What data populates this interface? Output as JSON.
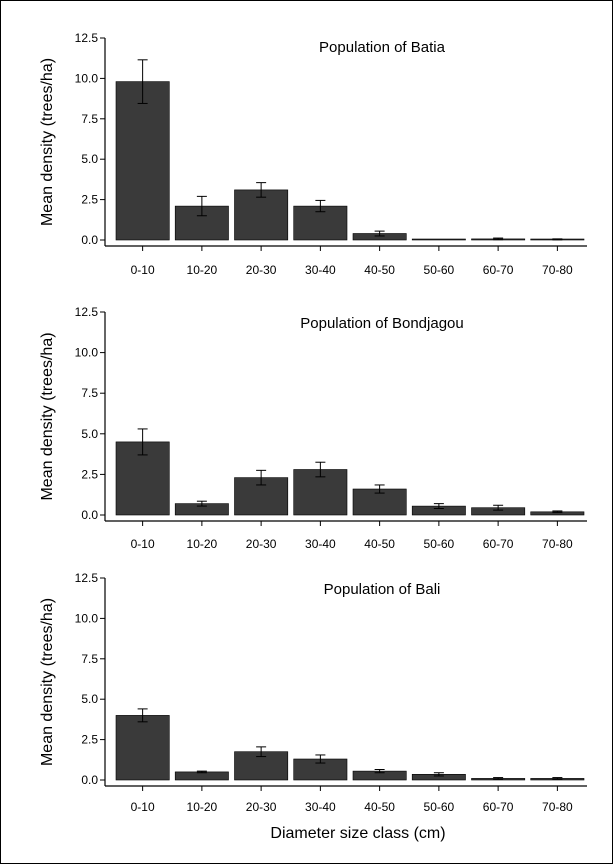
{
  "figure": {
    "xlabel": "Diameter size class (cm)",
    "ylabel": "Mean density (trees/ha)",
    "bar_color": "#3a3a3a",
    "axis_color": "#000000"
  },
  "chart_data": [
    {
      "type": "bar",
      "title": "Population of Batia",
      "xlabel": "",
      "ylabel": "Mean density (trees/ha)",
      "categories": [
        "0-10",
        "10-20",
        "20-30",
        "30-40",
        "40-50",
        "50-60",
        "60-70",
        "70-80"
      ],
      "values": [
        9.8,
        2.1,
        3.1,
        2.1,
        0.4,
        0.0,
        0.07,
        0.04
      ],
      "errors": [
        1.35,
        0.6,
        0.45,
        0.35,
        0.15,
        0.0,
        0.05,
        0.03
      ],
      "yticks": [
        0.0,
        2.5,
        5.0,
        7.5,
        10.0,
        12.5
      ],
      "ytick_labels": [
        "0.0",
        "2.5",
        "5.0",
        "7.5",
        "10.0",
        "12.5"
      ],
      "ylim": [
        0,
        12.5
      ],
      "grid": false
    },
    {
      "type": "bar",
      "title": "Population of Bondjagou",
      "xlabel": "",
      "ylabel": "Mean density (trees/ha)",
      "categories": [
        "0-10",
        "10-20",
        "20-30",
        "30-40",
        "40-50",
        "50-60",
        "60-70",
        "70-80"
      ],
      "values": [
        4.5,
        0.7,
        2.3,
        2.8,
        1.6,
        0.55,
        0.45,
        0.2
      ],
      "errors": [
        0.8,
        0.15,
        0.45,
        0.45,
        0.25,
        0.15,
        0.15,
        0.05
      ],
      "yticks": [
        0.0,
        2.5,
        5.0,
        7.5,
        10.0,
        12.5
      ],
      "ytick_labels": [
        "0.0",
        "2.5",
        "5.0",
        "7.5",
        "10.0",
        "12.5"
      ],
      "ylim": [
        0,
        12.5
      ],
      "grid": false
    },
    {
      "type": "bar",
      "title": "Population of Bali",
      "xlabel": "Diameter size class (cm)",
      "ylabel": "Mean density (trees/ha)",
      "categories": [
        "0-10",
        "10-20",
        "20-30",
        "30-40",
        "40-50",
        "50-60",
        "60-70",
        "70-80"
      ],
      "values": [
        4.0,
        0.5,
        1.75,
        1.3,
        0.55,
        0.35,
        0.1,
        0.1
      ],
      "errors": [
        0.4,
        0.05,
        0.3,
        0.25,
        0.1,
        0.1,
        0.05,
        0.05
      ],
      "yticks": [
        0.0,
        2.5,
        5.0,
        7.5,
        10.0,
        12.5
      ],
      "ytick_labels": [
        "0.0",
        "2.5",
        "5.0",
        "7.5",
        "10.0",
        "12.5"
      ],
      "ylim": [
        0,
        12.5
      ],
      "grid": false
    }
  ]
}
